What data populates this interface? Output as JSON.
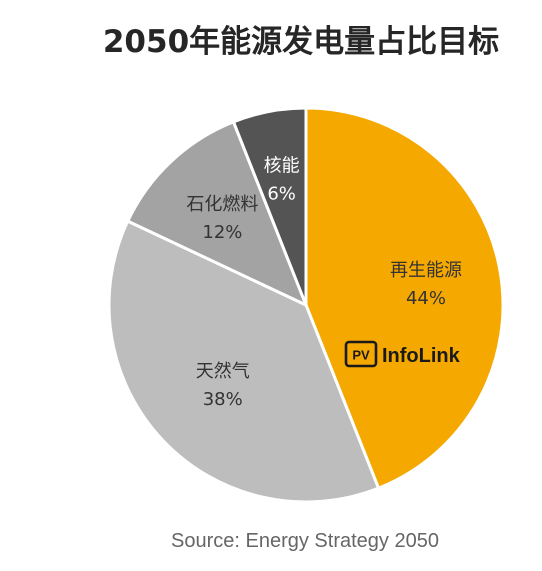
{
  "title": "2050年能源发电量占比目标",
  "source": "Source: Energy Strategy 2050",
  "logo_text": "InfoLink",
  "chart_data": {
    "type": "pie",
    "title": "2050年能源发电量占比目标",
    "unit": "%",
    "slices": [
      {
        "label": "再生能源",
        "value": 44,
        "display": "44%",
        "color": "#F5A800",
        "text_color": "#333333"
      },
      {
        "label": "天然气",
        "value": 38,
        "display": "38%",
        "color": "#BDBDBD",
        "text_color": "#333333"
      },
      {
        "label": "石化燃料",
        "value": 12,
        "display": "12%",
        "color": "#A3A3A3",
        "text_color": "#333333"
      },
      {
        "label": "核能",
        "value": 6,
        "display": "6%",
        "color": "#545454",
        "text_color": "#ffffff"
      }
    ]
  },
  "colors": {
    "title": "#262626",
    "source": "#666666",
    "logo": "#1A1A1A"
  }
}
